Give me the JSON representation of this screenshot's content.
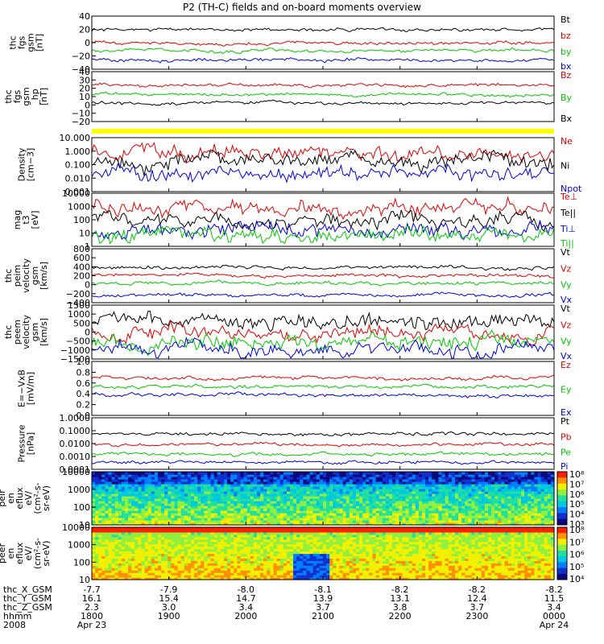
{
  "title": "P2 (TH-C) fields and on-board moments overview",
  "chart_data": {
    "type": "line",
    "title": "P2 (TH-C) fields and on-board moments overview",
    "x_axis": {
      "ticks": [
        "1800",
        "1900",
        "2000",
        "2100",
        "2200",
        "2300",
        "0000"
      ],
      "range": [
        "2008-04-23 18:00",
        "2008-04-24 00:00"
      ],
      "extra_rows": [
        {
          "label": "thc_X_GSM",
          "values": [
            "-7.7",
            "-7.9",
            "-8.0",
            "-8.1",
            "-8.2",
            "-8.2",
            "-8.2"
          ]
        },
        {
          "label": "thc_Y_GSM",
          "values": [
            "16.1",
            "15.4",
            "14.7",
            "13.9",
            "13.1",
            "12.4",
            "11.5"
          ]
        },
        {
          "label": "thc_Z_GSM",
          "values": [
            "2.3",
            "3.0",
            "3.4",
            "3.7",
            "3.8",
            "3.7",
            "3.4"
          ]
        },
        {
          "label": "hhmm",
          "values": [
            "1800",
            "1900",
            "2000",
            "2100",
            "2200",
            "2300",
            "0000"
          ]
        },
        {
          "label": "2008",
          "values": [
            "Apr 23",
            "",
            "",
            "",
            "",
            "",
            "Apr 24"
          ]
        }
      ]
    },
    "panels": [
      {
        "id": "fgs",
        "ylabel": [
          "thc",
          "fgs",
          "gsm",
          "[nT]"
        ],
        "scale": "linear",
        "ylim": [
          -40,
          40
        ],
        "ticks": [
          "40",
          "20",
          "0",
          "−20",
          "−40"
        ],
        "legend": [
          {
            "name": "Bt",
            "color": "#000000"
          },
          {
            "name": "bz",
            "color": "#e00000"
          },
          {
            "name": "by",
            "color": "#00c800"
          },
          {
            "name": "bx",
            "color": "#0000e0"
          }
        ]
      },
      {
        "id": "fgs_hp",
        "ylabel": [
          "thc",
          "fgs",
          "gsm",
          "_hp",
          "[nT]"
        ],
        "scale": "linear",
        "ylim": [
          -25,
          40
        ],
        "ticks": [
          "40",
          "30",
          "20",
          "10",
          "0",
          "−10",
          "−20"
        ],
        "legend": [
          {
            "name": "Bz",
            "color": "#e00000"
          },
          {
            "name": "By",
            "color": "#00c800"
          },
          {
            "name": "Bx",
            "color": "#000000"
          }
        ]
      },
      {
        "id": "density",
        "ylabel": [
          "Density",
          "[cm−3]"
        ],
        "scale": "log",
        "ylim": [
          0.001,
          10
        ],
        "ticks": [
          "10.000",
          "1.000",
          "0.100",
          "0.010",
          "0.001"
        ],
        "legend": [
          {
            "name": "Ne",
            "color": "#e00000"
          },
          {
            "name": "Ni",
            "color": "#000000"
          },
          {
            "name": "Npot",
            "color": "#0000e0"
          }
        ]
      },
      {
        "id": "temp",
        "ylabel": [
          "mag",
          "t3",
          "[eV]"
        ],
        "scale": "log",
        "ylim": [
          1,
          10000
        ],
        "ticks": [
          "10000",
          "1000",
          "100",
          "10",
          "1"
        ],
        "legend": [
          {
            "name": "Te⊥",
            "color": "#e00000"
          },
          {
            "name": "Te||",
            "color": "#000000"
          },
          {
            "name": "Ti⊥",
            "color": "#0000e0"
          },
          {
            "name": "Ti||",
            "color": "#00c800"
          }
        ]
      },
      {
        "id": "peim",
        "ylabel": [
          "thc",
          "peim",
          "velocity",
          "gsm",
          "[km/s]"
        ],
        "scale": "linear",
        "ylim": [
          -400,
          800
        ],
        "ticks": [
          "800",
          "600",
          "400",
          "200",
          "0",
          "−200",
          "−400"
        ],
        "legend": [
          {
            "name": "Vt",
            "color": "#000000"
          },
          {
            "name": "Vz",
            "color": "#e00000"
          },
          {
            "name": "Vy",
            "color": "#00c800"
          },
          {
            "name": "Vx",
            "color": "#0000e0"
          }
        ]
      },
      {
        "id": "peem",
        "ylabel": [
          "thc",
          "peem",
          "velocity",
          "gsm",
          "[km/s]"
        ],
        "scale": "linear",
        "ylim": [
          -1500,
          1500
        ],
        "ticks": [
          "1500",
          "1000",
          "500",
          "0",
          "−500",
          "−1000",
          "−1500"
        ],
        "legend": [
          {
            "name": "Vt",
            "color": "#000000"
          },
          {
            "name": "Vz",
            "color": "#e00000"
          },
          {
            "name": "Vy",
            "color": "#00c800"
          },
          {
            "name": "Vx",
            "color": "#0000e0"
          }
        ]
      },
      {
        "id": "efield",
        "ylabel": [
          "E=−VxB",
          "[mV/m]"
        ],
        "scale": "linear",
        "ylim": [
          0,
          1
        ],
        "ticks": [
          "1.0",
          "0.8",
          "0.6",
          "0.4",
          "0.2",
          "0.0"
        ],
        "legend": [
          {
            "name": "Ez",
            "color": "#e00000"
          },
          {
            "name": "Ey",
            "color": "#00c800"
          },
          {
            "name": "Ex",
            "color": "#0000e0"
          }
        ]
      },
      {
        "id": "pressure",
        "ylabel": [
          "Pressure",
          "[nPa]"
        ],
        "scale": "log",
        "ylim": [
          0.0001,
          1
        ],
        "ticks": [
          "1.0000",
          "0.1000",
          "0.0100",
          "0.0010",
          "0.0001"
        ],
        "legend": [
          {
            "name": "Pt",
            "color": "#000000"
          },
          {
            "name": "Pb",
            "color": "#e00000"
          },
          {
            "name": "Pe",
            "color": "#00c800"
          },
          {
            "name": "Pi",
            "color": "#0000e0"
          }
        ]
      },
      {
        "id": "peir",
        "ylabel": [
          "thc",
          "peir",
          "en",
          "eflux",
          "eV/",
          "(cm²-s-",
          "sr-eV)"
        ],
        "scale": "log",
        "ylim": [
          10,
          20000
        ],
        "ticks": [
          "10000",
          "1000",
          "100",
          "10"
        ],
        "type": "heatmap",
        "colorbar": [
          "10⁸",
          "10⁷",
          "10⁶",
          "10⁵",
          "10⁴",
          "10³"
        ]
      },
      {
        "id": "peer",
        "ylabel": [
          "thc",
          "peer",
          "en",
          "eflux",
          "eV/",
          "(cm²-s-",
          "sr-eV)"
        ],
        "scale": "log",
        "ylim": [
          7,
          20000
        ],
        "ticks": [
          "10000",
          "1000",
          "100",
          "10"
        ],
        "type": "heatmap",
        "colorbar": [
          "10⁸",
          "10⁷",
          "10⁶",
          "10⁵",
          "10⁴"
        ]
      }
    ]
  }
}
